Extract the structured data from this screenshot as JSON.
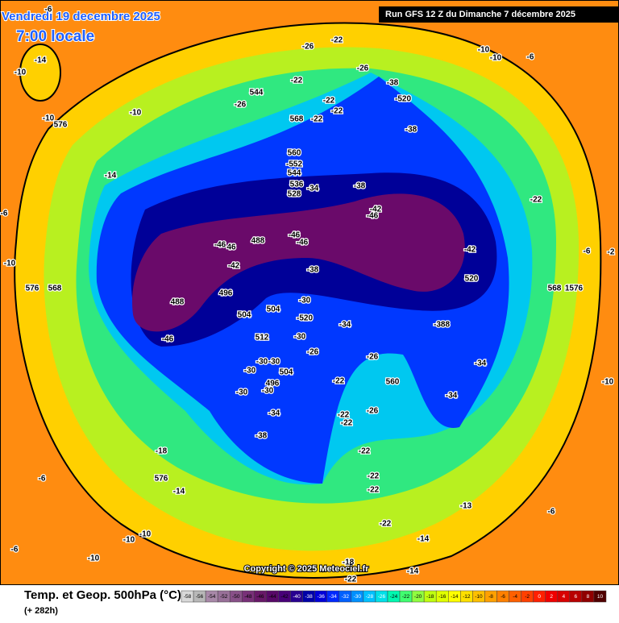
{
  "header": {
    "date": "Vendredi 19 decembre 2025",
    "time": "7:00 locale",
    "run": "Run GFS 12 Z du Dimanche 7 décembre 2025"
  },
  "map_labels": [
    "-6",
    "-14",
    "-10",
    "-10",
    "-10",
    "576",
    "-14",
    "-6",
    "-10",
    "576",
    "568",
    "544",
    "-26",
    "-22",
    "-22",
    "-22",
    "568",
    "-22",
    "-26",
    "-22",
    "-26",
    "-38",
    "-520",
    "-38",
    "560",
    "-552",
    "544",
    "536",
    "528",
    "-34",
    "-38",
    "-42",
    "-46",
    "-22",
    "-42",
    "520",
    "568",
    "1576",
    "488",
    "-46",
    "-46",
    "-46",
    "46",
    "-42",
    "-38",
    "496",
    "488",
    "-30",
    "504",
    "504",
    "-520",
    "-34",
    "-388",
    "512",
    "-30",
    "-46",
    "-26",
    "-26",
    "-34",
    "-30",
    "-30",
    "-30",
    "504",
    "-22",
    "560",
    "496",
    "-30",
    "-30",
    "-34",
    "-34",
    "-26",
    "-22",
    "-22",
    "-38",
    "-18",
    "-22",
    "576",
    "-22",
    "-22",
    "-14",
    "-6",
    "-13",
    "-6",
    "-22",
    "-10",
    "-10",
    "-14",
    "-6",
    "-10",
    "-18",
    "-14",
    "-22",
    "-10",
    "-6",
    "-2",
    "-6",
    "-10",
    "-10"
  ],
  "footer": {
    "title": "Temp. et Geop. 500hPa (°C)",
    "lead": "(+ 282h)",
    "copyright": "Copyright © 2025 Meteociel.fr"
  },
  "scale": {
    "labels": [
      -58,
      -56,
      -54,
      -52,
      -50,
      -48,
      -46,
      -44,
      -42,
      -40,
      -38,
      -36,
      -34,
      -32,
      -30,
      -28,
      -26,
      -24,
      -22,
      -20,
      -18,
      -16,
      -14,
      -12,
      -10,
      -8,
      -6,
      -4,
      -2,
      0,
      2,
      4,
      6,
      8,
      10
    ],
    "colors": [
      "#d8d8d8",
      "#b8b8b8",
      "#a888a8",
      "#987098",
      "#885088",
      "#783078",
      "#681868",
      "#580868",
      "#480078",
      "#280090",
      "#0000a8",
      "#0000d8",
      "#0028ff",
      "#0060ff",
      "#0090ff",
      "#00c0ff",
      "#00e0e8",
      "#00f8b0",
      "#40ff70",
      "#90ff40",
      "#c0ff10",
      "#e0ff00",
      "#ffff00",
      "#ffe000",
      "#ffc000",
      "#ffa000",
      "#ff8000",
      "#ff6000",
      "#ff4000",
      "#ff2000",
      "#f00000",
      "#d80000",
      "#b80000",
      "#900000",
      "#500000"
    ]
  }
}
